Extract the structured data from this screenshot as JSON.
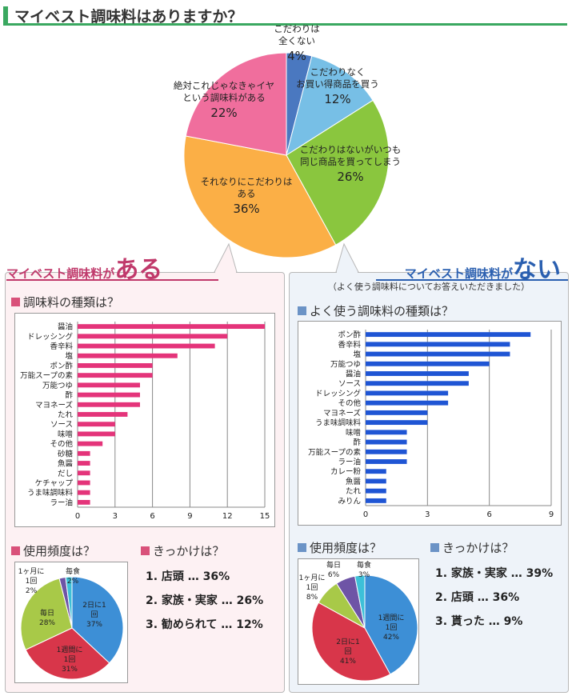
{
  "title": "マイベスト調味料はありますか？",
  "colors": {
    "pink": "#e4347a",
    "blue": "#1f55d4",
    "accent_green": "#3aa860"
  },
  "chart_data": [
    {
      "type": "pie",
      "title": "マイベスト調味料はありますか？",
      "slices": [
        {
          "label": "こだわりは\n全くない",
          "value": 4,
          "color": "#4a78c0"
        },
        {
          "label": "こだわりなく\nお買い得商品を買う",
          "value": 12,
          "color": "#77bfe6"
        },
        {
          "label": "こだわりはないがいつも\n同じ商品を買ってしまう",
          "value": 26,
          "color": "#8ac63e"
        },
        {
          "label": "それなりにこだわりは\nある",
          "value": 36,
          "color": "#fbaf46"
        },
        {
          "label": "絶対これじゃなきゃイヤ\nという調味料がある",
          "value": 22,
          "color": "#f06e9d"
        }
      ]
    },
    {
      "type": "bar",
      "title": "調味料の種類は？",
      "orientation": "horizontal",
      "categories": [
        "醤油",
        "ドレッシング",
        "香辛料",
        "塩",
        "ポン酢",
        "万能スープの素",
        "万能つゆ",
        "酢",
        "マヨネーズ",
        "たれ",
        "ソース",
        "味噌",
        "その他",
        "砂糖",
        "魚醤",
        "だし",
        "ケチャップ",
        "うま味調味料",
        "ラー油"
      ],
      "values": [
        15,
        12,
        11,
        8,
        6,
        6,
        5,
        5,
        5,
        4,
        3,
        3,
        2,
        1,
        1,
        1,
        1,
        1,
        1
      ],
      "xlim": [
        0,
        15
      ],
      "xticks": [
        "0",
        "3",
        "6",
        "9",
        "12",
        "15"
      ],
      "grid": true
    },
    {
      "type": "pie",
      "title": "使用頻度は？",
      "slices": [
        {
          "label": "2日に1\n回",
          "value": 37,
          "color": "#3d8fd6"
        },
        {
          "label": "1週間に\n1回",
          "value": 31,
          "color": "#d8364a"
        },
        {
          "label": "毎日",
          "value": 28,
          "color": "#a8c948"
        },
        {
          "label": "1ヶ月に\n1回",
          "value": 2,
          "color": "#6e54a6"
        },
        {
          "label": "毎食",
          "value": 2,
          "color": "#3dc0d8"
        }
      ]
    },
    {
      "type": "bar",
      "title": "よく使う調味料の種類は？",
      "orientation": "horizontal",
      "categories": [
        "ポン酢",
        "香辛料",
        "塩",
        "万能つゆ",
        "醤油",
        "ソース",
        "ドレッシング",
        "その他",
        "マヨネーズ",
        "うま味調味料",
        "味噌",
        "酢",
        "万能スープの素",
        "ラー油",
        "カレー粉",
        "魚醤",
        "たれ",
        "みりん"
      ],
      "values": [
        8,
        7,
        7,
        6,
        5,
        5,
        4,
        4,
        3,
        3,
        2,
        2,
        2,
        2,
        1,
        1,
        1,
        1
      ],
      "xlim": [
        0,
        9
      ],
      "xticks": [
        "0",
        "3",
        "6",
        "9"
      ],
      "grid": true
    },
    {
      "type": "pie",
      "title": "使用頻度は？",
      "slices": [
        {
          "label": "1週間に\n1回",
          "value": 42,
          "color": "#3d8fd6"
        },
        {
          "label": "2日に1\n回",
          "value": 41,
          "color": "#d8364a"
        },
        {
          "label": "1ヶ月に\n1回",
          "value": 8,
          "color": "#a8c948"
        },
        {
          "label": "毎日",
          "value": 6,
          "color": "#6e54a6"
        },
        {
          "label": "毎食",
          "value": 3,
          "color": "#3dc0d8"
        }
      ]
    }
  ],
  "left_panel": {
    "heading_prefix": "マイベスト調味料が",
    "heading_big": "ある",
    "types_title": "調味料の種類は？",
    "freq_title": "使用頻度は？",
    "reason_title": "きっかけは？",
    "reasons": [
      "1. 店頭 … 36%",
      "2. 家族・実家 … 26%",
      "3. 勧められて … 12%"
    ]
  },
  "right_panel": {
    "heading_prefix": "マイベスト調味料が",
    "heading_big": "ない",
    "note": "（よく使う調味料についてお答えいただきました）",
    "types_title": "よく使う調味料の種類は？",
    "freq_title": "使用頻度は？",
    "reason_title": "きっかけは？",
    "reasons": [
      "1. 家族・実家 … 39%",
      "2. 店頭 … 36%",
      "3. 貰った … 9%"
    ]
  }
}
